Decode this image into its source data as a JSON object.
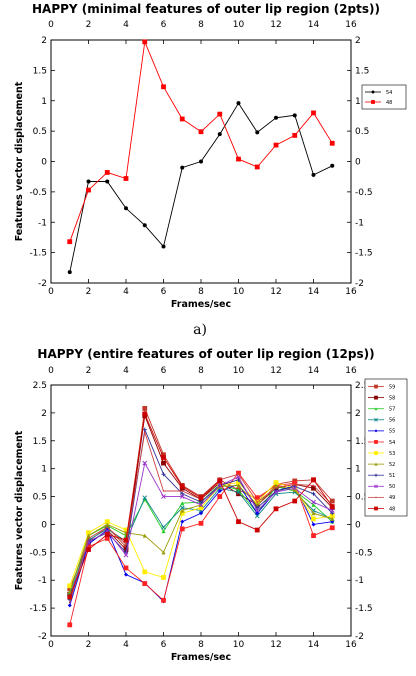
{
  "caption_a": "a)",
  "chart_data": [
    {
      "type": "line",
      "title": "HAPPY (minimal features of outer lip region (2pts))",
      "xlabel": "Frames/sec",
      "ylabel": "Features vector displacement",
      "xlim": [
        0,
        16
      ],
      "ylim": [
        -2,
        2
      ],
      "xticks": [
        "0",
        "2",
        "4",
        "6",
        "8",
        "10",
        "12",
        "14",
        "16"
      ],
      "yticks": [
        "-2",
        "-1.5",
        "-1",
        "-0.5",
        "0",
        "0.5",
        "1",
        "1.5",
        "2"
      ],
      "legend_position": "right",
      "x": [
        1,
        2,
        3,
        4,
        5,
        6,
        7,
        8,
        9,
        10,
        11,
        12,
        13,
        14,
        15
      ],
      "series": [
        {
          "name": "54",
          "color": "#000000",
          "marker": "circle",
          "values": [
            -1.82,
            -0.33,
            -0.33,
            -0.77,
            -1.05,
            -1.4,
            -0.1,
            0.0,
            0.45,
            0.96,
            0.48,
            0.72,
            0.76,
            -0.22,
            -0.07
          ]
        },
        {
          "name": "48",
          "color": "#ff0000",
          "marker": "square",
          "values": [
            -1.32,
            -0.47,
            -0.18,
            -0.28,
            1.97,
            1.23,
            0.7,
            0.49,
            0.78,
            0.04,
            -0.09,
            0.27,
            0.43,
            0.8,
            0.3
          ]
        }
      ]
    },
    {
      "type": "line",
      "title": "HAPPY (entire features of outer lip region (12ps))",
      "xlabel": "Frames/sec",
      "ylabel": "Features vector displacement",
      "xlim": [
        0,
        16
      ],
      "ylim": [
        -2,
        2.5
      ],
      "xticks": [
        "0",
        "2",
        "4",
        "6",
        "8",
        "10",
        "12",
        "14",
        "16"
      ],
      "yticks": [
        "-2",
        "-1.5",
        "-1",
        "-0.5",
        "0",
        "0.5",
        "1",
        "1.5",
        "2",
        "2.5"
      ],
      "legend_position": "right",
      "x": [
        1,
        2,
        3,
        4,
        5,
        6,
        7,
        8,
        9,
        10,
        11,
        12,
        13,
        14,
        15
      ],
      "series": [
        {
          "name": "59",
          "color": "#c0392b",
          "marker": "square",
          "values": [
            -1.15,
            -0.3,
            -0.05,
            -0.4,
            2.08,
            1.25,
            0.7,
            0.5,
            0.8,
            0.62,
            0.45,
            0.72,
            0.78,
            0.8,
            0.42
          ]
        },
        {
          "name": "58",
          "color": "#8b0000",
          "marker": "square",
          "values": [
            -1.25,
            -0.35,
            -0.1,
            -0.45,
            1.95,
            1.1,
            0.65,
            0.45,
            0.75,
            0.55,
            0.35,
            0.65,
            0.72,
            0.65,
            0.3
          ]
        },
        {
          "name": "57",
          "color": "#22cc22",
          "marker": "triangle",
          "values": [
            -1.22,
            -0.2,
            -0.02,
            -0.2,
            0.45,
            -0.12,
            0.38,
            0.4,
            0.72,
            0.62,
            0.2,
            0.68,
            0.6,
            0.35,
            0.05
          ]
        },
        {
          "name": "56",
          "color": "#118888",
          "marker": "x",
          "values": [
            -1.28,
            -0.28,
            -0.08,
            -0.3,
            0.48,
            -0.05,
            0.3,
            0.25,
            0.65,
            0.58,
            0.15,
            0.55,
            0.58,
            0.25,
            0.1
          ]
        },
        {
          "name": "55",
          "color": "#0000ee",
          "marker": "diamond",
          "values": [
            -1.45,
            -0.35,
            -0.1,
            -0.9,
            -1.05,
            -1.38,
            0.05,
            0.2,
            0.6,
            0.72,
            0.2,
            0.6,
            0.7,
            0.0,
            0.05
          ]
        },
        {
          "name": "54",
          "color": "#ff2222",
          "marker": "square",
          "values": [
            -1.8,
            -0.4,
            -0.25,
            -0.78,
            -1.06,
            -1.36,
            -0.08,
            0.02,
            0.5,
            0.92,
            0.48,
            0.7,
            0.74,
            -0.2,
            -0.06
          ]
        },
        {
          "name": "53",
          "color": "#ffee00",
          "marker": "square",
          "values": [
            -1.1,
            -0.15,
            0.05,
            -0.1,
            -0.85,
            -0.95,
            0.2,
            0.3,
            0.7,
            0.75,
            0.4,
            0.75,
            0.65,
            0.1,
            0.15
          ]
        },
        {
          "name": "52",
          "color": "#999900",
          "marker": "triangle",
          "values": [
            -1.2,
            -0.2,
            0.0,
            -0.15,
            -0.2,
            -0.5,
            0.25,
            0.35,
            0.68,
            0.7,
            0.35,
            0.7,
            0.62,
            0.2,
            0.1
          ]
        },
        {
          "name": "51",
          "color": "#333399",
          "marker": "plus",
          "values": [
            -1.35,
            -0.3,
            -0.15,
            -0.5,
            1.7,
            0.9,
            0.55,
            0.4,
            0.7,
            0.8,
            0.3,
            0.6,
            0.68,
            0.55,
            0.2
          ]
        },
        {
          "name": "50",
          "color": "#9933cc",
          "marker": "x",
          "values": [
            -1.3,
            -0.32,
            -0.12,
            -0.55,
            1.1,
            0.5,
            0.5,
            0.35,
            0.7,
            0.85,
            0.25,
            0.58,
            0.65,
            0.4,
            0.25
          ]
        },
        {
          "name": "49",
          "color": "#cc4444",
          "marker": "line",
          "values": [
            -1.4,
            -0.25,
            -0.05,
            -0.35,
            1.65,
            0.6,
            0.6,
            0.45,
            0.8,
            0.9,
            0.4,
            0.66,
            0.72,
            0.7,
            0.35
          ]
        },
        {
          "name": "48",
          "color": "#cc0000",
          "marker": "square",
          "values": [
            -1.3,
            -0.45,
            -0.18,
            -0.28,
            1.98,
            1.2,
            0.68,
            0.48,
            0.78,
            0.05,
            -0.1,
            0.28,
            0.42,
            0.8,
            0.32
          ]
        }
      ]
    }
  ]
}
